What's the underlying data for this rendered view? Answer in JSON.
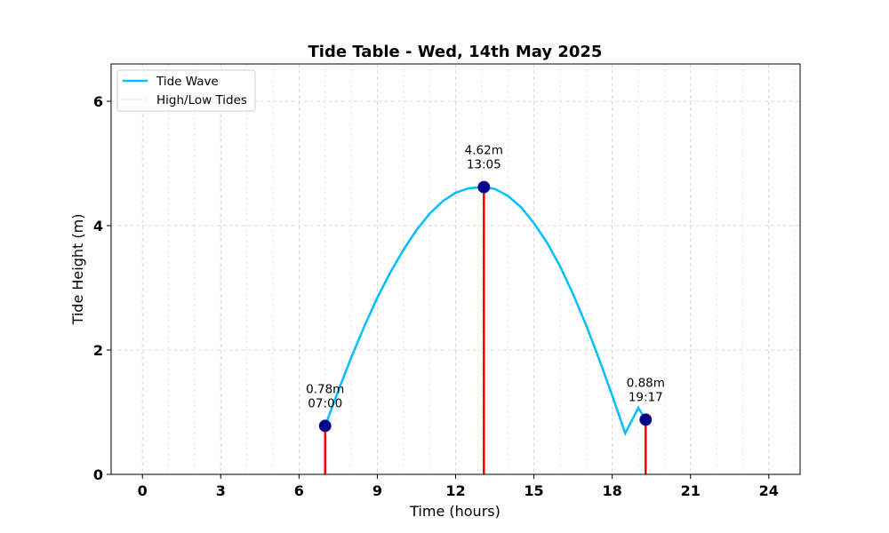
{
  "chart_data": {
    "type": "line",
    "title": "Tide Table - Wed, 14th May 2025",
    "xlabel": "Time (hours)",
    "ylabel": "Tide Height (m)",
    "xlim": [
      -1.2,
      25.2
    ],
    "ylim": [
      0,
      6.6
    ],
    "x_ticks": [
      0,
      3,
      6,
      9,
      12,
      15,
      18,
      21,
      24
    ],
    "x_minor_grid_step": 1,
    "y_ticks": [
      0,
      2,
      4,
      6
    ],
    "grid": true,
    "legend_position": "top-left",
    "series": [
      {
        "name": "Tide Wave",
        "color": "#00bfff",
        "x": [
          7.0,
          7.5,
          8.0,
          8.5,
          9.0,
          9.5,
          10.0,
          10.5,
          11.0,
          11.5,
          12.0,
          12.5,
          13.0,
          13.083,
          13.5,
          14.0,
          14.5,
          15.0,
          15.5,
          16.0,
          16.5,
          17.0,
          17.5,
          18.0,
          18.5,
          19.0,
          19.283
        ],
        "y": [
          0.78,
          1.34,
          1.88,
          2.38,
          2.84,
          3.25,
          3.61,
          3.93,
          4.19,
          4.39,
          4.53,
          4.6,
          4.62,
          4.62,
          4.59,
          4.48,
          4.3,
          4.04,
          3.73,
          3.35,
          2.9,
          2.4,
          1.85,
          1.27,
          0.66,
          1.07,
          0.88
        ]
      },
      {
        "name": "High/Low Tides",
        "color": "#ff0000",
        "marker_color": "#00008b",
        "points": [
          {
            "x": 7.0,
            "y": 0.78,
            "height_label": "0.78m",
            "time_label": "07:00"
          },
          {
            "x": 13.083,
            "y": 4.62,
            "height_label": "4.62m",
            "time_label": "13:05"
          },
          {
            "x": 19.283,
            "y": 0.88,
            "height_label": "0.88m",
            "time_label": "19:17"
          }
        ]
      }
    ]
  }
}
